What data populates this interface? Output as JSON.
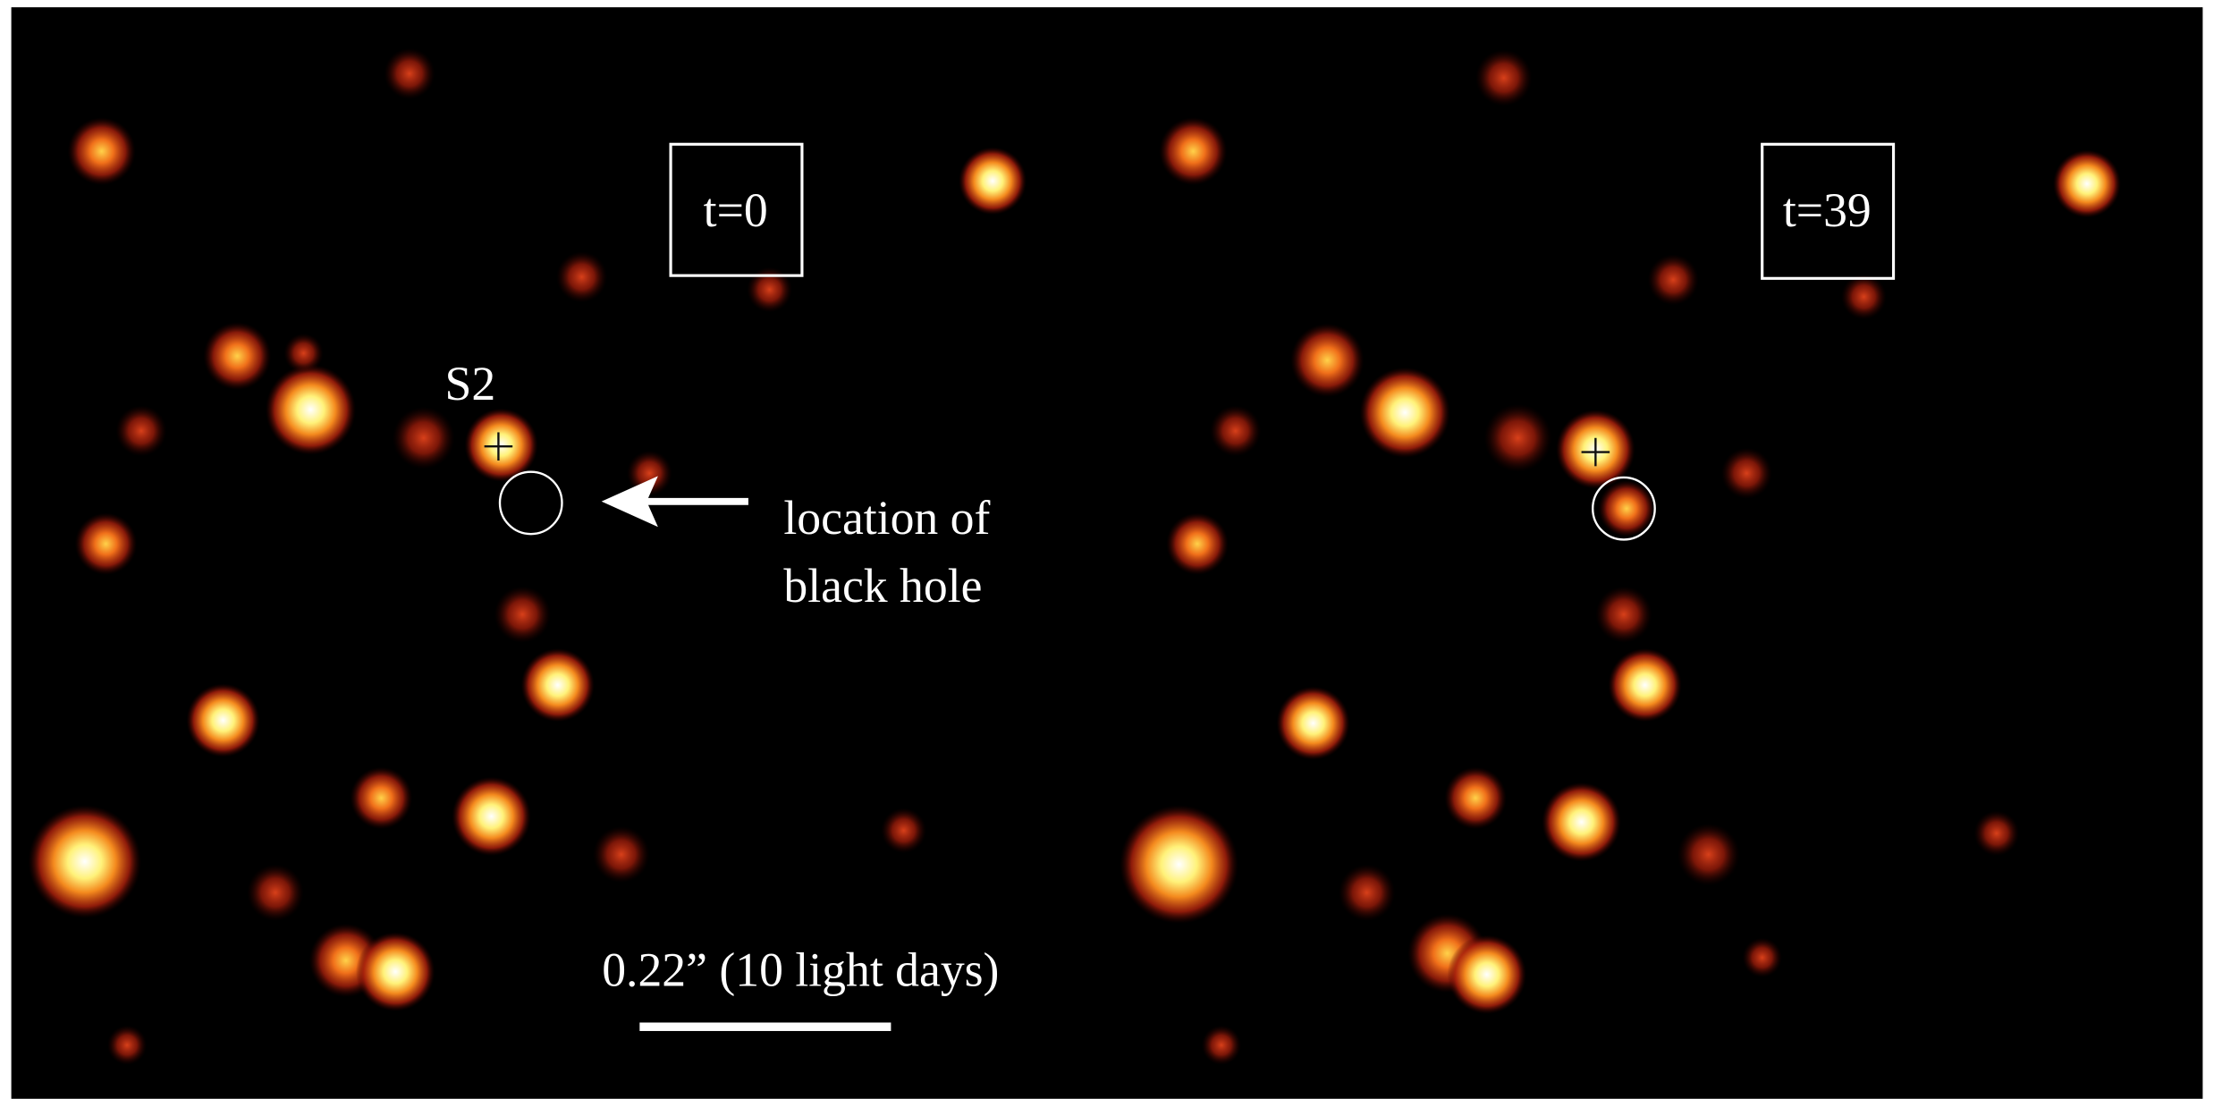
{
  "panels": [
    {
      "label": "t=0"
    },
    {
      "label": "t=39"
    }
  ],
  "annotations": {
    "star_label": "S2",
    "pointer_text": [
      "location of",
      "black hole"
    ],
    "scale_bar": "0.22” (10 light days)"
  }
}
